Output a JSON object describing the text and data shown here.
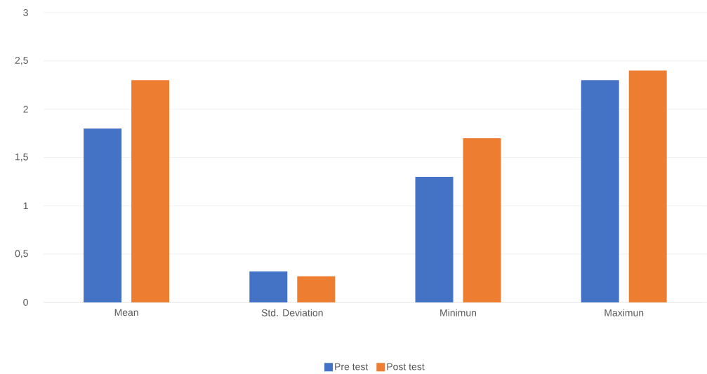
{
  "chart_data": {
    "type": "bar",
    "categories": [
      "Mean",
      "Std. Deviation",
      "Minimun",
      "Maximun"
    ],
    "series": [
      {
        "name": "Pre test",
        "color": "#4472c4",
        "values": [
          1.8,
          0.32,
          1.3,
          2.3
        ]
      },
      {
        "name": "Post test",
        "color": "#ed7d31",
        "values": [
          2.3,
          0.27,
          1.7,
          2.4
        ]
      }
    ],
    "ylim": [
      0,
      3
    ],
    "yticks": [
      0,
      {
        "value": 0.5,
        "label": "0,5"
      },
      1,
      {
        "value": 1.5,
        "label": "1,5"
      },
      2,
      {
        "value": 2.5,
        "label": "2,5"
      },
      3
    ],
    "grid": "y",
    "legend": "bottom"
  }
}
